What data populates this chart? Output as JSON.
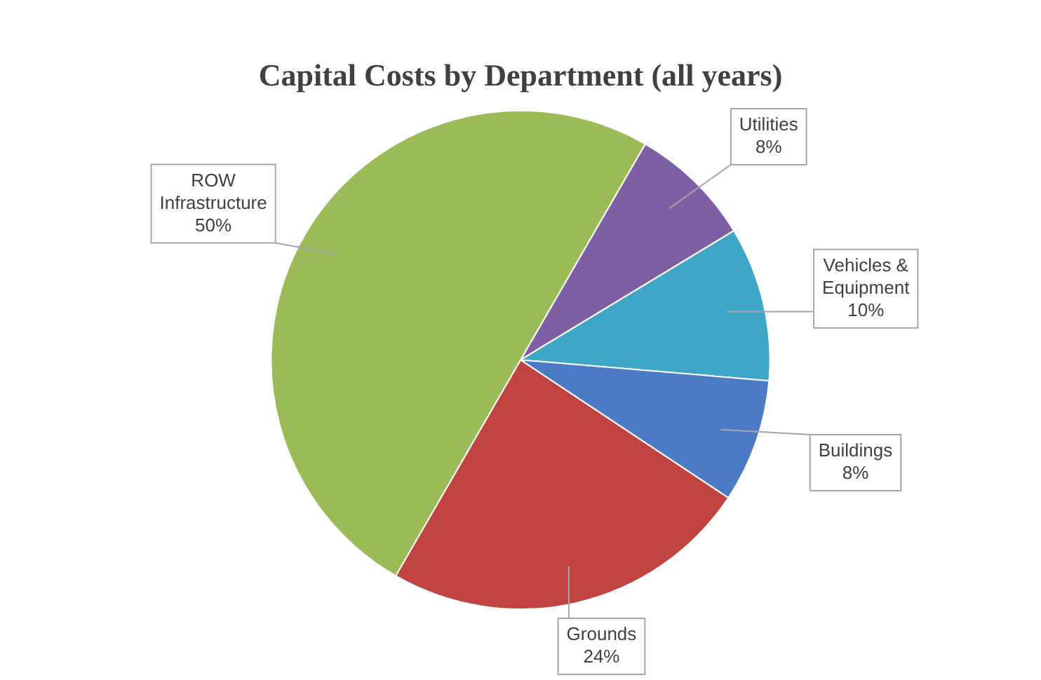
{
  "chart_data": {
    "type": "pie",
    "title": "Capital Costs by Department (all years)",
    "categories": [
      "Utilities",
      "Vehicles & Equipment",
      "Buildings",
      "Grounds",
      "ROW Infrastructure"
    ],
    "values": [
      8,
      10,
      8,
      24,
      50
    ],
    "colors": [
      "#7e5fa3",
      "#3ea6c6",
      "#4a7bc4",
      "#c0433f",
      "#9bbb59"
    ],
    "value_labels": [
      "8%",
      "10%",
      "8%",
      "24%",
      "50%"
    ],
    "legend": false
  }
}
